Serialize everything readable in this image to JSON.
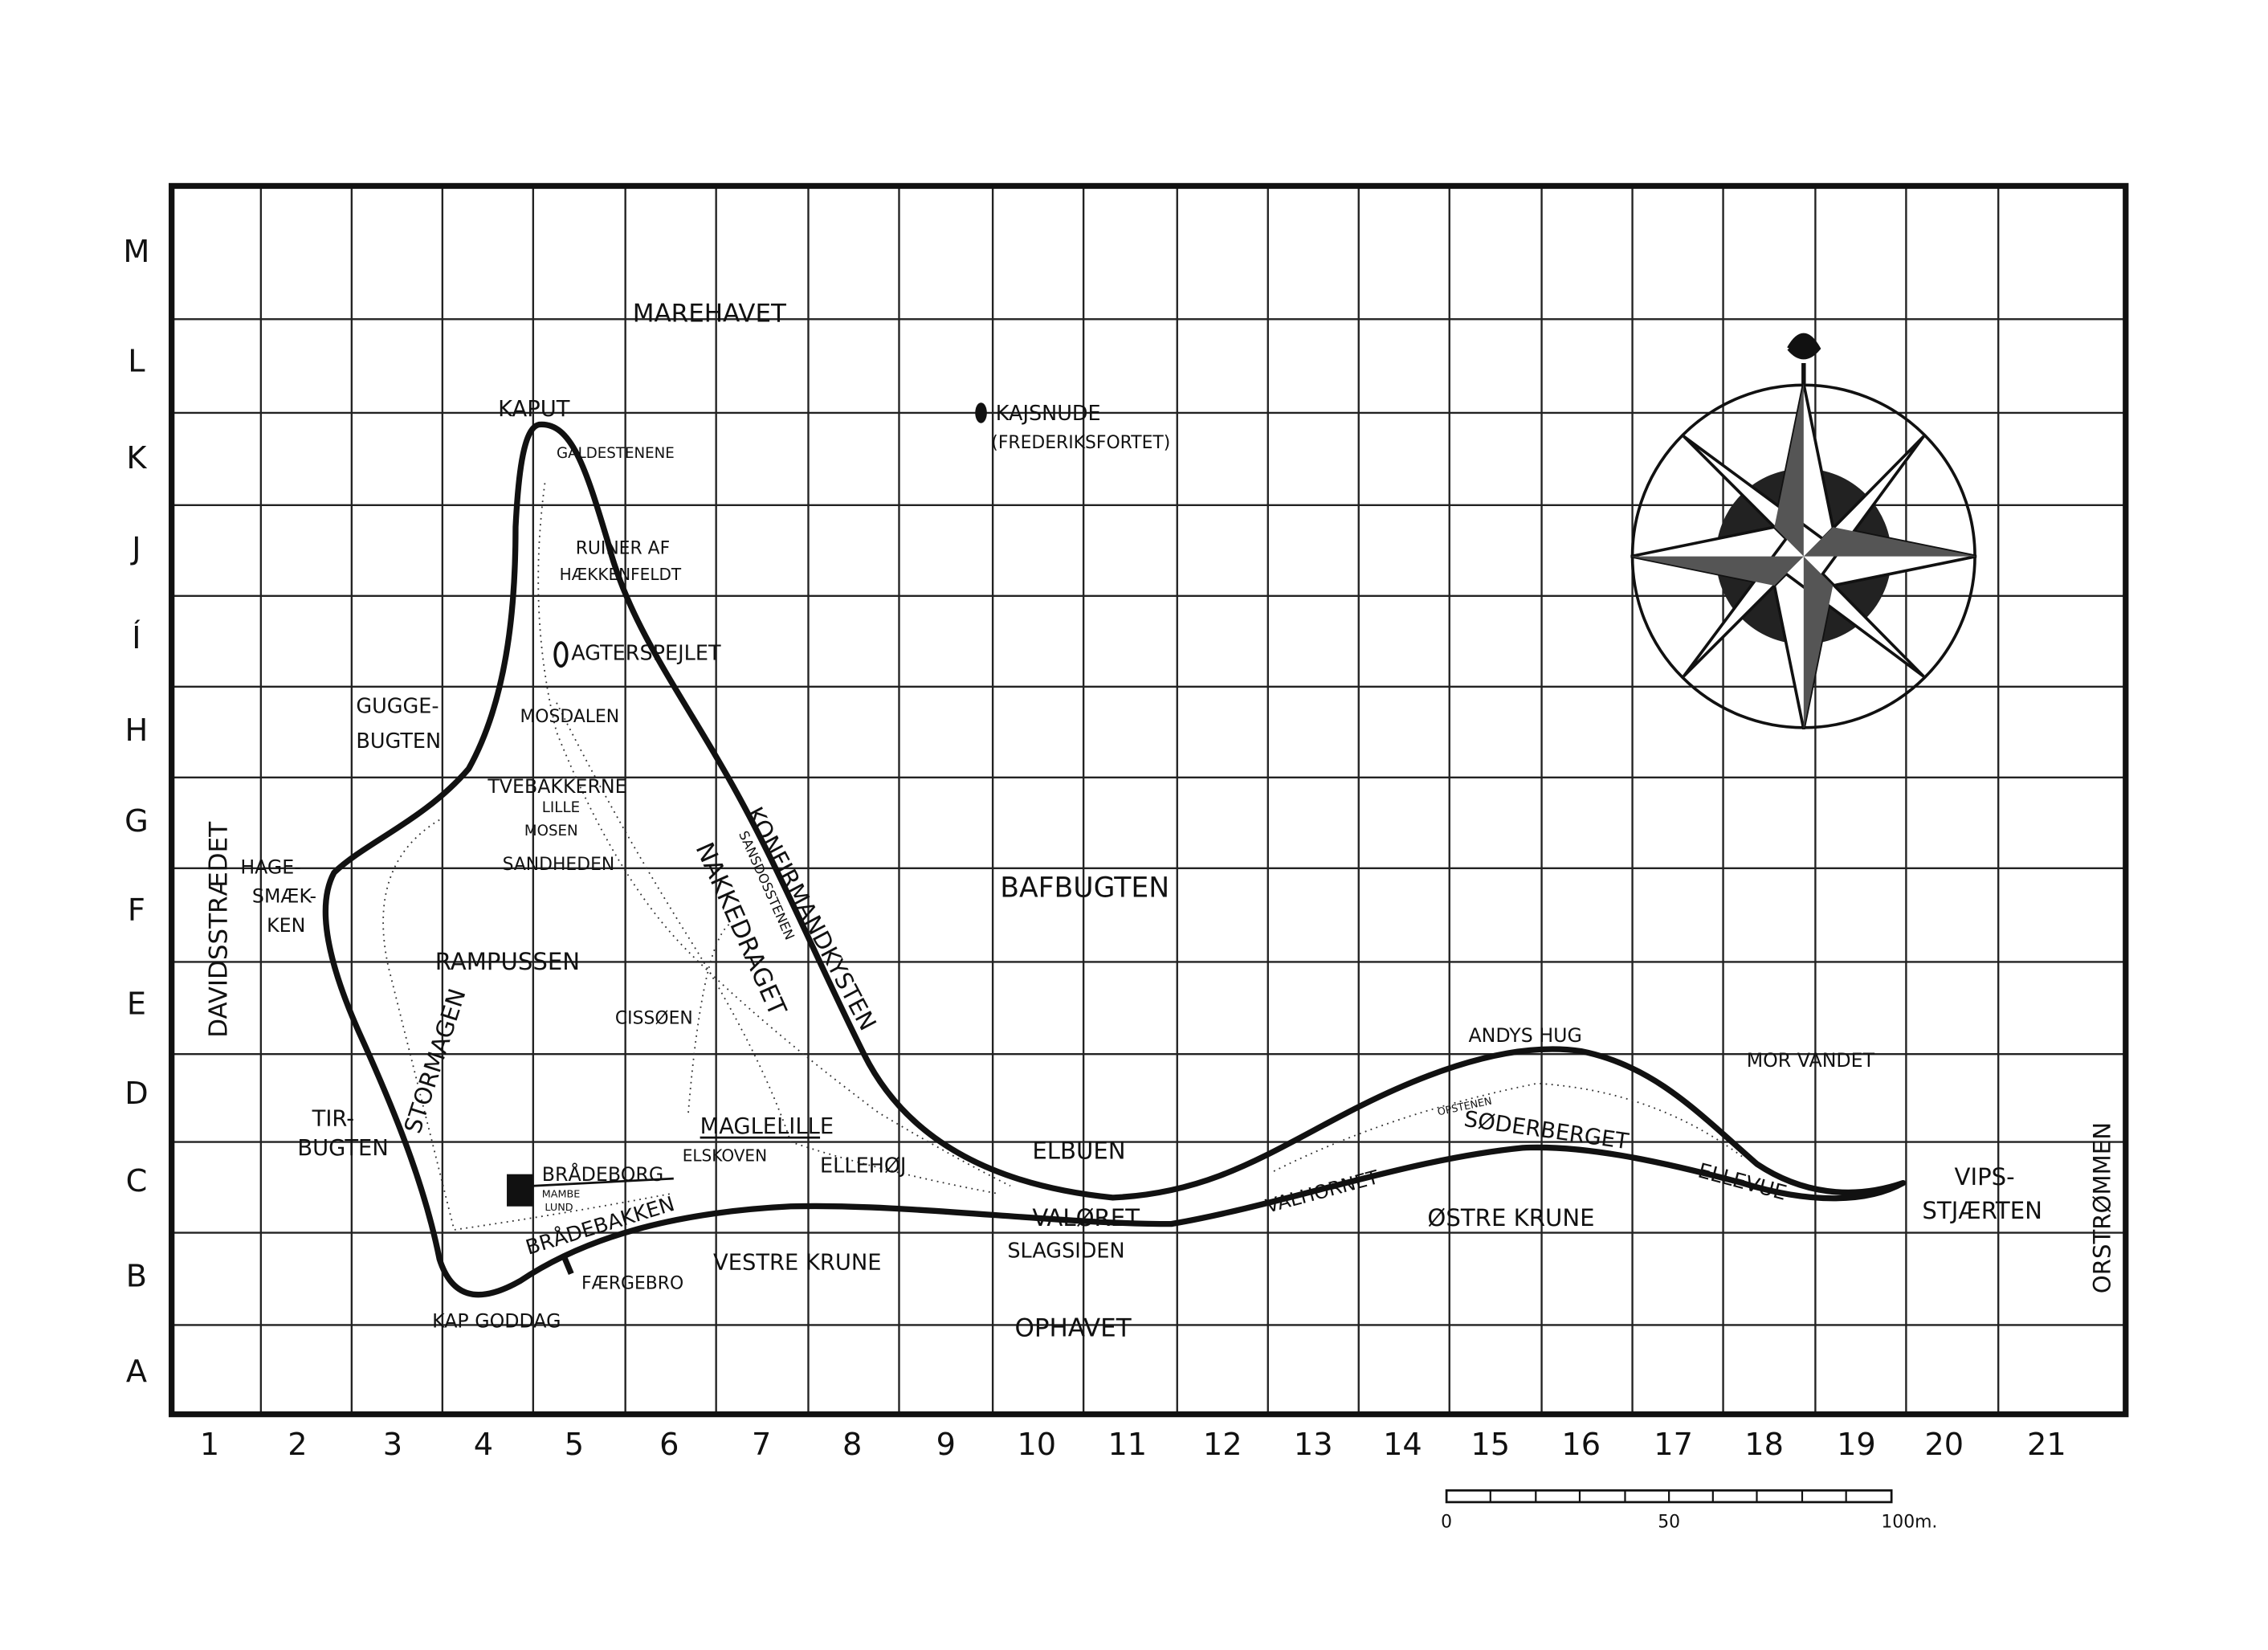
{
  "map": {
    "row_labels": [
      "M",
      "L",
      "K",
      "J",
      "Í",
      "H",
      "G",
      "F",
      "E",
      "D",
      "C",
      "B",
      "A"
    ],
    "column_labels": [
      "1",
      "2",
      "3",
      "4",
      "5",
      "6",
      "7",
      "8",
      "9",
      "10",
      "11",
      "12",
      "13",
      "14",
      "15",
      "16",
      "17",
      "18",
      "19",
      "20",
      "21"
    ],
    "places": [
      "MAREHAVET",
      "KAPUT",
      "KAJSNUDE",
      "(FREDERIKSFORTET)",
      "GALDESTENENE",
      "RUINER AF",
      "HÆKKENFELDT",
      "AGTERSPEJLET",
      "GUGGE-",
      "BUGTEN",
      "MOSDALEN",
      "TVEBAKKERNE",
      "LILLE",
      "MOSEN",
      "SANDHEDEN",
      "HAGE-",
      "SMÆK-",
      "KEN",
      "DAVIDSSTRÆDET",
      "RAMPUSSEN",
      "CISSØEN",
      "STORMAGEN",
      "NAKKEDRAGET",
      "KONFIRMANDKYSTEN",
      "SANSDOSSTENEN",
      "BAFBUGTEN",
      "TIR-",
      "BUGTEN",
      "MAGLELILLE",
      "ELSKOVEN",
      "ELLEHØJ",
      "BRÅDEBORG",
      "MAMBE",
      "LUND",
      "BRÅDEBAKKEN",
      "FÆRGEBRO",
      "KAP GODDAG",
      "VESTRE KRUNE",
      "ELBUEN",
      "VALØRET",
      "SLAGSIDEN",
      "OPHAVET",
      "ANDYS HUG",
      "MOR VANDET",
      "OPSTENEN",
      "SØDERBERGET",
      "VALHORNET",
      "ØSTRE KRUNE",
      "ELLEVUE",
      "VIPS-",
      "STJÆRTEN",
      "ORSTRØMMEN"
    ],
    "scale_labels": [
      "0",
      "50",
      "100m."
    ]
  }
}
